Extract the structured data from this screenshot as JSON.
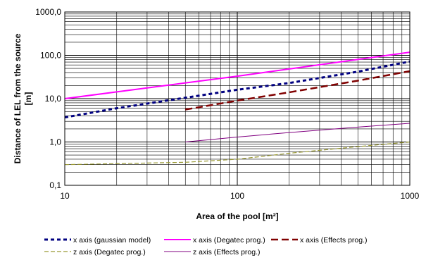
{
  "chart_data": {
    "type": "line",
    "title": "",
    "xlabel": "Area of the pool [m²]",
    "ylabel_line1": "Distance of LEL from the source",
    "ylabel_line2": "[m]",
    "x_scale": "log",
    "y_scale": "log",
    "xlim": [
      10,
      1000
    ],
    "ylim": [
      0.1,
      1000
    ],
    "grid": true,
    "legend_position": "bottom",
    "x_ticks": [
      {
        "value": 10,
        "label": "10"
      },
      {
        "value": 100,
        "label": "100"
      },
      {
        "value": 1000,
        "label": "1000"
      }
    ],
    "y_ticks": [
      {
        "value": 0.1,
        "label": "0,1"
      },
      {
        "value": 1,
        "label": "1,0"
      },
      {
        "value": 10,
        "label": "10,0"
      },
      {
        "value": 100,
        "label": "100,0"
      },
      {
        "value": 1000,
        "label": "1000,0"
      }
    ],
    "series": [
      {
        "name": "x axis (gaussian model)",
        "color": "#000080",
        "style": "dotted",
        "x": [
          10,
          20,
          50,
          100,
          200,
          500,
          1000
        ],
        "y": [
          3.7,
          6,
          10.5,
          16,
          23,
          42,
          72
        ]
      },
      {
        "name": "x axis (Degatec prog.)",
        "color": "#ff00ff",
        "style": "solid-thick",
        "x": [
          10,
          100,
          1000
        ],
        "y": [
          10,
          33,
          118
        ]
      },
      {
        "name": "x axis (Effects prog.)",
        "color": "#800000",
        "style": "dashed",
        "x": [
          50,
          100,
          200,
          500,
          1000
        ],
        "y": [
          5.6,
          9,
          14,
          26,
          43
        ]
      },
      {
        "name": "z axis (Degatec prog.)",
        "color": "#999933",
        "style": "dashed-thin",
        "x": [
          10,
          50,
          100,
          200,
          500,
          1000
        ],
        "y": [
          0.3,
          0.34,
          0.4,
          0.55,
          0.78,
          1.0
        ]
      },
      {
        "name": "z axis (Effects prog.)",
        "color": "#800080",
        "style": "solid-thin",
        "x": [
          50,
          100,
          200,
          500,
          1000
        ],
        "y": [
          1.0,
          1.3,
          1.65,
          2.2,
          2.7
        ]
      }
    ]
  }
}
